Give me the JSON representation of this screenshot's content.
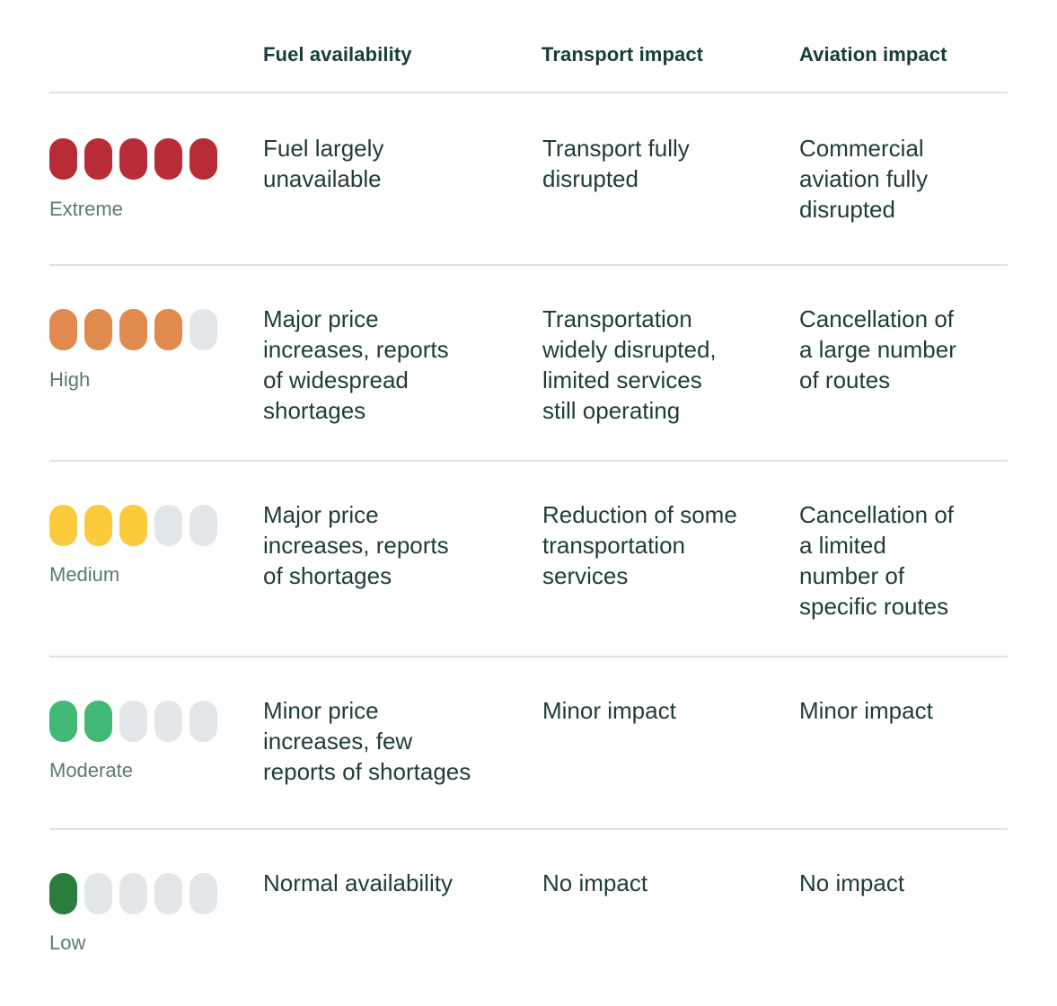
{
  "headers": {
    "fuel": "Fuel availability",
    "transport": "Transport impact",
    "aviation": "Aviation impact"
  },
  "colors": {
    "inactive": "#e3e7ea",
    "extreme": "#b72c36",
    "high": "#e08a4f",
    "medium": "#fbcb3b",
    "moderate": "#42b877",
    "low": "#2b7d3e"
  },
  "rows": [
    {
      "level": "Extreme",
      "filled": 5,
      "total": 5,
      "color_key": "extreme",
      "fuel": "Fuel largely\nunavailable",
      "transport": "Transport fully\ndisrupted",
      "aviation": "Commercial\naviation fully\ndisrupted"
    },
    {
      "level": "High",
      "filled": 4,
      "total": 5,
      "color_key": "high",
      "fuel": "Major price\nincreases, reports\nof widespread\nshortages",
      "transport": "Transportation\nwidely disrupted,\nlimited services\nstill operating",
      "aviation": "Cancellation of\na large number\nof routes"
    },
    {
      "level": "Medium",
      "filled": 3,
      "total": 5,
      "color_key": "medium",
      "fuel": "Major price\nincreases, reports\nof shortages",
      "transport": "Reduction of some\ntransportation\nservices",
      "aviation": "Cancellation of\na limited\nnumber of\nspecific routes"
    },
    {
      "level": "Moderate",
      "filled": 2,
      "total": 5,
      "color_key": "moderate",
      "fuel": "Minor price\nincreases, few\nreports of shortages",
      "transport": "Minor impact",
      "aviation": "Minor impact"
    },
    {
      "level": "Low",
      "filled": 1,
      "total": 5,
      "color_key": "low",
      "fuel": "Normal availability",
      "transport": "No impact",
      "aviation": "No impact"
    }
  ]
}
